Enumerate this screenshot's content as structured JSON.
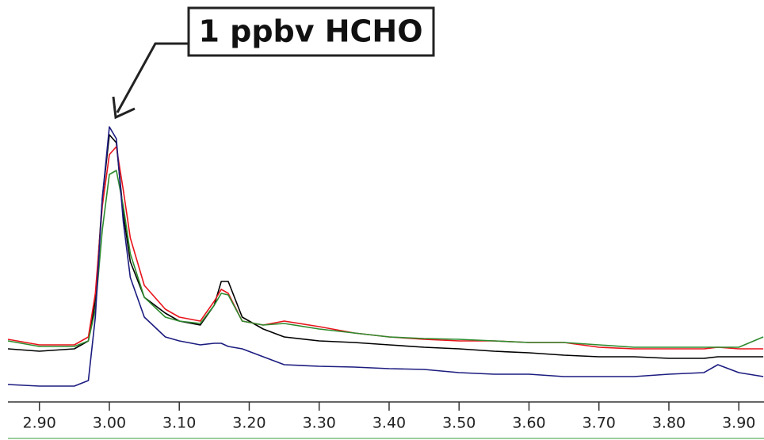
{
  "chart_data": {
    "type": "line",
    "annotation": "1 ppbv HCHO",
    "x": [
      2.855,
      2.9,
      2.95,
      2.97,
      2.98,
      2.99,
      3.0,
      3.01,
      3.02,
      3.03,
      3.05,
      3.08,
      3.1,
      3.13,
      3.15,
      3.16,
      3.17,
      3.19,
      3.22,
      3.25,
      3.3,
      3.35,
      3.4,
      3.45,
      3.5,
      3.55,
      3.6,
      3.65,
      3.7,
      3.75,
      3.8,
      3.85,
      3.87,
      3.9,
      3.935
    ],
    "series": [
      {
        "color": "#000000",
        "values": [
          14,
          13.4,
          14,
          16,
          26,
          52,
          68,
          66,
          48,
          36,
          27,
          23,
          21,
          20,
          25,
          31,
          31,
          22,
          19,
          17,
          16,
          15.6,
          15,
          14.4,
          14,
          13.4,
          13,
          12.4,
          12,
          12,
          11.6,
          11.6,
          12,
          12,
          12
        ]
      },
      {
        "color": "#e8141c",
        "values": [
          16.4,
          15,
          15,
          17,
          28,
          50,
          63,
          65,
          54,
          42,
          30,
          24,
          22,
          21,
          26,
          29,
          28,
          21,
          20,
          21,
          19.6,
          18,
          17,
          16.4,
          16,
          16,
          15.6,
          15.6,
          14.4,
          14,
          14,
          14,
          14.4,
          14,
          14
        ]
      },
      {
        "color": "#2e8b2e",
        "values": [
          16,
          14.6,
          14.6,
          16,
          24,
          44,
          58,
          59,
          50,
          38,
          27,
          22,
          21,
          20.4,
          25,
          28,
          27.6,
          21,
          20,
          20.4,
          19,
          18,
          17,
          16.6,
          16.4,
          16,
          15.6,
          15.6,
          15,
          14.4,
          14.4,
          14.4,
          14.4,
          14.4,
          17
        ]
      },
      {
        "color": "#1c1c80",
        "values": [
          5,
          4.6,
          4.6,
          6,
          22,
          52,
          70,
          67,
          46,
          32,
          22,
          17,
          16,
          15,
          15.4,
          15.4,
          14.6,
          14,
          12,
          10,
          9.6,
          9.4,
          9,
          8.8,
          8,
          7.6,
          7.6,
          7,
          7,
          7,
          7.6,
          8,
          10,
          8,
          7
        ]
      }
    ],
    "xlim": [
      2.855,
      3.936
    ],
    "ylim": [
      0,
      100
    ],
    "xticks": [
      {
        "value": 2.9,
        "label": "2.90"
      },
      {
        "value": 3.0,
        "label": "3.00"
      },
      {
        "value": 3.1,
        "label": "3.10"
      },
      {
        "value": 3.2,
        "label": "3.20"
      },
      {
        "value": 3.3,
        "label": "3.30"
      },
      {
        "value": 3.4,
        "label": "3.40"
      },
      {
        "value": 3.5,
        "label": "3.50"
      },
      {
        "value": 3.6,
        "label": "3.60"
      },
      {
        "value": 3.7,
        "label": "3.70"
      },
      {
        "value": 3.8,
        "label": "3.80"
      },
      {
        "value": 3.9,
        "label": "3.90"
      }
    ]
  }
}
